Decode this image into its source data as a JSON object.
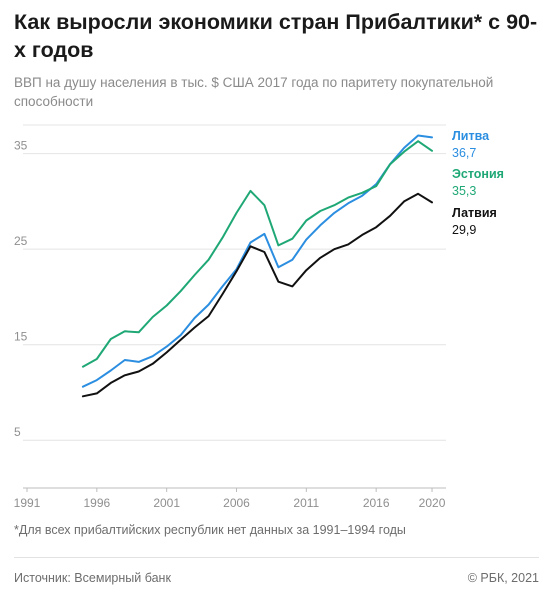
{
  "header": {
    "title": "Как выросли экономики стран Прибалтики* с 90-х годов",
    "subtitle": "ВВП на душу населения в тыс. $ США 2017 года по паритету покупательной способности"
  },
  "footer": {
    "footnote": "*Для всех прибалтийских республик нет данных за 1991–1994 годы",
    "source": "Источник: Всемирный банк",
    "copyright": "© РБК, 2021"
  },
  "colors": {
    "lithuania": "#2b8ee0",
    "estonia": "#1fa876",
    "latvia": "#111111",
    "grid": "#e4e4e4"
  },
  "chart_data": {
    "type": "line",
    "x": [
      1995,
      1996,
      1997,
      1998,
      1999,
      2000,
      2001,
      2002,
      2003,
      2004,
      2005,
      2006,
      2007,
      2008,
      2009,
      2010,
      2011,
      2012,
      2013,
      2014,
      2015,
      2016,
      2017,
      2018,
      2019,
      2020
    ],
    "x_ticks": [
      "1991",
      "1996",
      "2001",
      "2006",
      "2011",
      "2016",
      "2020"
    ],
    "y_ticks": [
      "5",
      "15",
      "25",
      "35"
    ],
    "xlim": [
      1991,
      2021
    ],
    "ylim": [
      0,
      38
    ],
    "grid": "horizontal",
    "series": [
      {
        "name": "Литва",
        "end_label": "36,7",
        "color_key": "lithuania",
        "values": [
          10.6,
          11.3,
          12.3,
          13.4,
          13.2,
          13.8,
          14.8,
          16.0,
          17.8,
          19.2,
          21.1,
          22.9,
          25.7,
          26.6,
          23.1,
          23.9,
          26.0,
          27.5,
          28.8,
          29.8,
          30.6,
          31.8,
          33.9,
          35.6,
          36.9,
          36.7
        ]
      },
      {
        "name": "Эстония",
        "end_label": "35,3",
        "color_key": "estonia",
        "values": [
          12.7,
          13.5,
          15.6,
          16.4,
          16.3,
          17.9,
          19.1,
          20.6,
          22.3,
          23.9,
          26.2,
          28.8,
          31.1,
          29.6,
          25.4,
          26.1,
          28.0,
          29.0,
          29.6,
          30.4,
          30.9,
          31.6,
          33.9,
          35.2,
          36.3,
          35.3
        ]
      },
      {
        "name": "Латвия",
        "end_label": "29,9",
        "color_key": "latvia",
        "values": [
          9.6,
          9.9,
          11.0,
          11.8,
          12.2,
          13.0,
          14.2,
          15.5,
          16.8,
          18.0,
          20.3,
          22.7,
          25.3,
          24.7,
          21.6,
          21.1,
          22.8,
          24.1,
          25.0,
          25.5,
          26.5,
          27.3,
          28.5,
          30.0,
          30.8,
          29.9
        ]
      }
    ]
  }
}
